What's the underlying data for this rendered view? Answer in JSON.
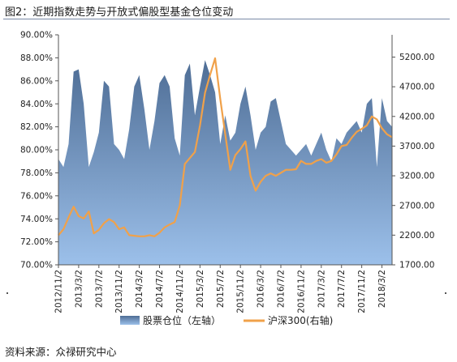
{
  "figure_title": "图2：近期指数走势与开放式偏股型基金仓位变动",
  "source_text": "资料来源：众禄研究中心",
  "colors": {
    "area_top": "#4e6d95",
    "area_bottom": "#9cc0ea",
    "line": "#f0a14a",
    "rule": "#7a8aa6"
  },
  "chart_data": {
    "type": "area",
    "title": "",
    "x": [
      "2012/11/2",
      "2012/12/2",
      "2013/1/2",
      "2013/2/2",
      "2013/3/2",
      "2013/4/2",
      "2013/5/2",
      "2013/6/2",
      "2013/7/2",
      "2013/8/2",
      "2013/9/2",
      "2013/10/2",
      "2013/11/2",
      "2013/12/2",
      "2014/1/2",
      "2014/2/2",
      "2014/3/2",
      "2014/4/2",
      "2014/5/2",
      "2014/6/2",
      "2014/7/2",
      "2014/8/2",
      "2014/9/2",
      "2014/10/2",
      "2014/11/2",
      "2014/12/2",
      "2015/1/2",
      "2015/2/2",
      "2015/3/2",
      "2015/4/2",
      "2015/5/2",
      "2015/6/2",
      "2015/7/2",
      "2015/8/2",
      "2015/9/2",
      "2015/10/2",
      "2015/11/2",
      "2015/12/2",
      "2016/1/2",
      "2016/2/2",
      "2016/3/2",
      "2016/4/2",
      "2016/5/2",
      "2016/6/2",
      "2016/7/2",
      "2016/8/2",
      "2016/9/2",
      "2016/10/2",
      "2016/11/2",
      "2016/12/2",
      "2017/1/2",
      "2017/2/2",
      "2017/3/2",
      "2017/4/2",
      "2017/5/2",
      "2017/6/2",
      "2017/7/2",
      "2017/8/2",
      "2017/9/2",
      "2017/10/2",
      "2017/11/2",
      "2017/12/2",
      "2018/1/2",
      "2018/2/2",
      "2018/3/2",
      "2018/4/2",
      "2018/5/2"
    ],
    "x_tick_labels": [
      "2012/11/2",
      "2013/3/2",
      "2013/7/2",
      "2013/11/2",
      "2014/3/2",
      "2014/7/2",
      "2014/11/2",
      "2015/3/2",
      "2015/7/2",
      "2015/11/2",
      "2016/3/2",
      "2016/7/2",
      "2016/11/2",
      "2017/3/2",
      "2017/7/2",
      "2017/11/2",
      "2018/3/2"
    ],
    "y_left_ticks": [
      "70.00%",
      "72.00%",
      "74.00%",
      "76.00%",
      "78.00%",
      "80.00%",
      "82.00%",
      "84.00%",
      "86.00%",
      "88.00%",
      "90.00%"
    ],
    "y_right_ticks": [
      "1700.00",
      "2200.00",
      "2700.00",
      "3200.00",
      "3700.00",
      "4200.00",
      "4700.00",
      "5200.00"
    ],
    "ylim_left": [
      70,
      90
    ],
    "ylim_right": [
      1700,
      5575
    ],
    "legend_position": "bottom",
    "grid": false,
    "series": [
      {
        "name": "股票仓位（左轴）",
        "axis": "left",
        "kind": "area",
        "values": [
          79.2,
          78.5,
          80.5,
          86.8,
          87.0,
          84.0,
          78.5,
          79.8,
          81.5,
          86.0,
          85.5,
          80.5,
          80.0,
          79.2,
          81.8,
          85.5,
          86.5,
          83.5,
          80.0,
          82.5,
          85.8,
          86.5,
          85.5,
          81.0,
          79.5,
          86.5,
          87.5,
          83.0,
          85.5,
          87.8,
          86.5,
          85.0,
          80.5,
          83.0,
          80.8,
          81.5,
          84.0,
          85.5,
          83.0,
          80.0,
          81.5,
          82.0,
          84.2,
          84.5,
          82.5,
          80.5,
          80.0,
          79.5,
          80.0,
          80.5,
          79.5,
          80.5,
          81.5,
          80.0,
          79.0,
          81.0,
          80.5,
          81.5,
          82.0,
          82.5,
          81.5,
          84.0,
          84.5,
          78.5,
          84.5,
          82.5,
          82.0
        ]
      },
      {
        "name": "沪深300(右轴)",
        "axis": "right",
        "kind": "line",
        "values": [
          2200,
          2300,
          2500,
          2680,
          2520,
          2480,
          2600,
          2230,
          2290,
          2400,
          2470,
          2420,
          2300,
          2330,
          2200,
          2190,
          2180,
          2180,
          2200,
          2180,
          2240,
          2330,
          2380,
          2420,
          2700,
          3400,
          3500,
          3600,
          4050,
          4600,
          4900,
          5180,
          4500,
          3900,
          3300,
          3550,
          3650,
          3780,
          3200,
          2950,
          3100,
          3200,
          3240,
          3200,
          3250,
          3300,
          3300,
          3310,
          3450,
          3400,
          3400,
          3450,
          3480,
          3420,
          3450,
          3560,
          3700,
          3720,
          3840,
          3940,
          3990,
          4050,
          4200,
          4150,
          4000,
          3900,
          3850
        ]
      }
    ]
  }
}
